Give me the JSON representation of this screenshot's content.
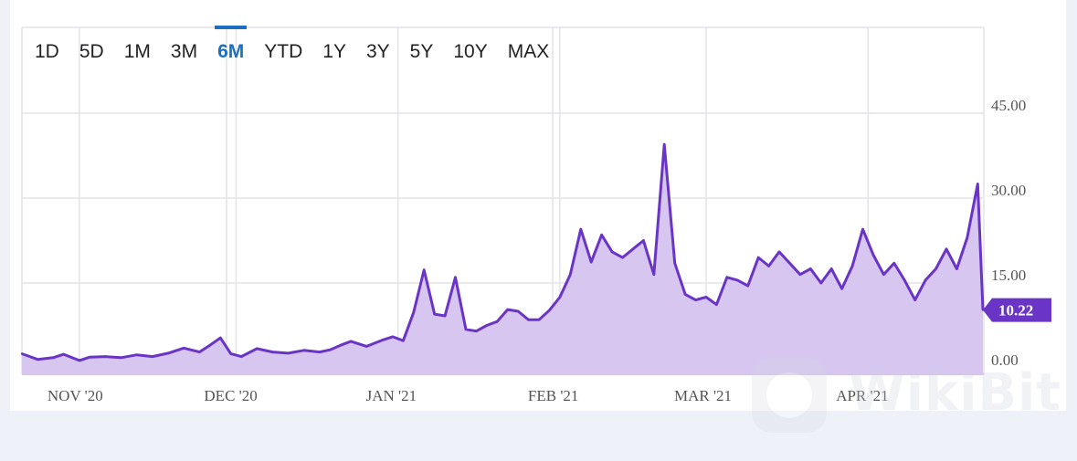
{
  "range_tabs": [
    {
      "label": "1D",
      "active": false
    },
    {
      "label": "5D",
      "active": false
    },
    {
      "label": "1M",
      "active": false
    },
    {
      "label": "3M",
      "active": false
    },
    {
      "label": "6M",
      "active": true
    },
    {
      "label": "YTD",
      "active": false
    },
    {
      "label": "1Y",
      "active": false
    },
    {
      "label": "3Y",
      "active": false
    },
    {
      "label": "5Y",
      "active": false
    },
    {
      "label": "10Y",
      "active": false
    },
    {
      "label": "MAX",
      "active": false
    }
  ],
  "watermark": "WikiBit",
  "colors": {
    "line": "#6a35c6",
    "fill": "#d6c6f0",
    "grid": "#e3e3e9",
    "active": "#1a6fc0",
    "badge": "#6a35c6"
  },
  "chart_data": {
    "type": "area",
    "title": "",
    "xlabel": "",
    "ylabel": "",
    "ylim": [
      -2.5,
      52
    ],
    "y_ticks": [
      {
        "value": 0,
        "label": "0.00"
      },
      {
        "value": 15,
        "label": "15.00"
      },
      {
        "value": 30,
        "label": "30.00"
      },
      {
        "value": 45,
        "label": "45.00"
      }
    ],
    "x_ticks": [
      {
        "date": "2020-11-01",
        "label": "NOV '20"
      },
      {
        "date": "2020-12-01",
        "label": "DEC '20"
      },
      {
        "date": "2021-01-01",
        "label": "JAN '21"
      },
      {
        "date": "2021-02-01",
        "label": "FEB '21"
      },
      {
        "date": "2021-03-01",
        "label": "MAR '21"
      },
      {
        "date": "2021-04-01",
        "label": "APR '21"
      }
    ],
    "last_value_label": "10.22",
    "grid": true,
    "series": [
      {
        "x": [
          "2020-10-21",
          "2020-10-24",
          "2020-10-27",
          "2020-10-29",
          "2020-11-01",
          "2020-11-03",
          "2020-11-06",
          "2020-11-09",
          "2020-11-12",
          "2020-11-15",
          "2020-11-18",
          "2020-11-21",
          "2020-11-24",
          "2020-11-26",
          "2020-11-28",
          "2020-11-30",
          "2020-12-02",
          "2020-12-05",
          "2020-12-08",
          "2020-12-11",
          "2020-12-14",
          "2020-12-17",
          "2020-12-19",
          "2020-12-21",
          "2020-12-23",
          "2020-12-26",
          "2020-12-29",
          "2020-12-31",
          "2021-01-02",
          "2021-01-04",
          "2021-01-06",
          "2021-01-08",
          "2021-01-10",
          "2021-01-12",
          "2021-01-14",
          "2021-01-16",
          "2021-01-18",
          "2021-01-20",
          "2021-01-22",
          "2021-01-24",
          "2021-01-26",
          "2021-01-28",
          "2021-01-30",
          "2021-02-01",
          "2021-02-03",
          "2021-02-05",
          "2021-02-07",
          "2021-02-09",
          "2021-02-11",
          "2021-02-13",
          "2021-02-15",
          "2021-02-17",
          "2021-02-19",
          "2021-02-21",
          "2021-02-23",
          "2021-02-25",
          "2021-02-27",
          "2021-03-01",
          "2021-03-03",
          "2021-03-05",
          "2021-03-07",
          "2021-03-09",
          "2021-03-11",
          "2021-03-13",
          "2021-03-15",
          "2021-03-17",
          "2021-03-19",
          "2021-03-21",
          "2021-03-23",
          "2021-03-25",
          "2021-03-27",
          "2021-03-29",
          "2021-03-31",
          "2021-04-02",
          "2021-04-04",
          "2021-04-06",
          "2021-04-08",
          "2021-04-10",
          "2021-04-12",
          "2021-04-14",
          "2021-04-16",
          "2021-04-18",
          "2021-04-20",
          "2021-04-22",
          "2021-04-23"
        ],
        "values": [
          2.5,
          1.5,
          1.8,
          2.4,
          1.3,
          1.9,
          2.0,
          1.8,
          2.3,
          2.0,
          2.6,
          3.5,
          2.8,
          4.0,
          5.3,
          2.5,
          2.0,
          3.4,
          2.8,
          2.6,
          3.1,
          2.8,
          3.2,
          4.0,
          4.7,
          3.8,
          4.9,
          5.5,
          4.8,
          9.8,
          17.3,
          9.5,
          9.2,
          16.0,
          6.8,
          6.5,
          7.5,
          8.2,
          10.3,
          10.0,
          8.5,
          8.5,
          10.2,
          12.5,
          16.5,
          24.5,
          18.7,
          23.5,
          20.5,
          19.5,
          21.0,
          22.5,
          16.5,
          39.5,
          18.5,
          13.0,
          12.0,
          12.5,
          11.2,
          16.0,
          15.5,
          14.5,
          19.5,
          18.0,
          20.5,
          18.5,
          16.5,
          17.5,
          15.0,
          17.5,
          14.0,
          18.0,
          24.5,
          20.0,
          16.5,
          18.5,
          15.5,
          12.0,
          15.5,
          17.5,
          21.0,
          17.5,
          23.0,
          32.5,
          10.22
        ]
      }
    ]
  }
}
